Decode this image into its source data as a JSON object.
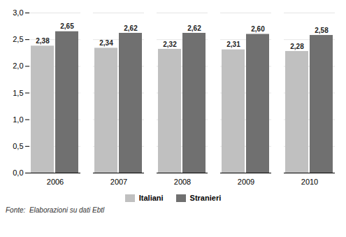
{
  "chart_data": {
    "type": "bar",
    "categories": [
      "2006",
      "2007",
      "2008",
      "2009",
      "2010"
    ],
    "series": [
      {
        "name": "Italiani",
        "color": "#c0c0c0",
        "values": [
          2.38,
          2.34,
          2.32,
          2.31,
          2.28
        ],
        "value_labels": [
          "2,38",
          "2,34",
          "2,32",
          "2,31",
          "2,28"
        ]
      },
      {
        "name": "Stranieri",
        "color": "#707070",
        "values": [
          2.65,
          2.62,
          2.62,
          2.6,
          2.58
        ],
        "value_labels": [
          "2,65",
          "2,62",
          "2,62",
          "2,60",
          "2,58"
        ]
      }
    ],
    "ylim": [
      0.0,
      3.0
    ],
    "yticks": [
      {
        "value": 0.0,
        "label": "0,0"
      },
      {
        "value": 0.5,
        "label": "0,5"
      },
      {
        "value": 1.0,
        "label": "1,0"
      },
      {
        "value": 1.5,
        "label": "1,5"
      },
      {
        "value": 2.0,
        "label": "2,0"
      },
      {
        "value": 2.5,
        "label": "2,5"
      },
      {
        "value": 3.0,
        "label": "3,0"
      }
    ],
    "grid": true,
    "legend": "bottom",
    "data_labels": true,
    "annotations": [
      "Fonte:  Elaborazioni su dati Ebtl"
    ]
  }
}
